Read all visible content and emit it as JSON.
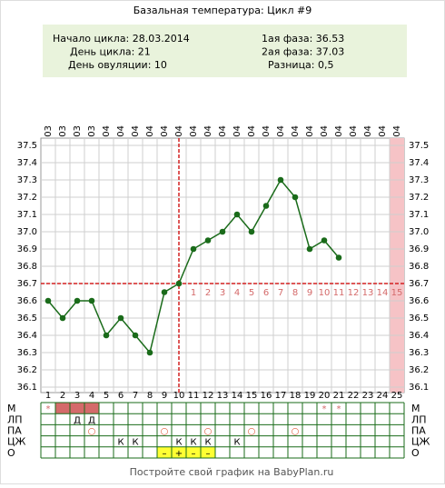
{
  "chart_data": {
    "type": "line",
    "title": "Базальная температура: Цикл #9",
    "info": {
      "left": [
        "Начало цикла: 28.03.2014",
        "День цикла: 21",
        "День овуляции: 10"
      ],
      "right": [
        "1ая фаза: 36.53",
        "2ая фаза: 37.03",
        "Разница: 0,5"
      ]
    },
    "categories": [
      "28.03",
      "29.03",
      "30.03",
      "31.03",
      "01.04",
      "02.04",
      "03.04",
      "04.04",
      "05.04",
      "06.04",
      "07.04",
      "08.04",
      "09.04",
      "10.04",
      "11.04",
      "12.04",
      "13.04",
      "14.04",
      "15.04",
      "16.04",
      "17.04",
      "18.04",
      "19.04",
      "20.04",
      "21.04"
    ],
    "weekdays": [
      "пт",
      "сб",
      "вс",
      "пн",
      "вт",
      "ср",
      "чт",
      "пт",
      "сб",
      "вс",
      "пн",
      "вт",
      "ср",
      "чт",
      "пт",
      "сб",
      "вс",
      "пн",
      "вт",
      "ср",
      "чт",
      "пт",
      "сб",
      "вс",
      "пн"
    ],
    "days": [
      1,
      2,
      3,
      4,
      5,
      6,
      7,
      8,
      9,
      10,
      11,
      12,
      13,
      14,
      15,
      16,
      17,
      18,
      19,
      20,
      21,
      22,
      23,
      24,
      25
    ],
    "series": [
      {
        "name": "Температура",
        "color": "#1a6b1a",
        "values": [
          36.6,
          36.5,
          36.6,
          36.6,
          36.4,
          36.5,
          36.4,
          36.3,
          36.65,
          36.7,
          36.9,
          36.95,
          37.0,
          37.1,
          37.0,
          37.15,
          37.3,
          37.2,
          36.9,
          36.95,
          36.85,
          null,
          null,
          null,
          null
        ]
      }
    ],
    "ylim": [
      36.1,
      37.5
    ],
    "yticks": [
      {
        "value": 36.1,
        "label": "36.1"
      },
      {
        "value": 36.2,
        "label": "36.2"
      },
      {
        "value": 36.3,
        "label": "36.3"
      },
      {
        "value": 36.4,
        "label": "36.4"
      },
      {
        "value": 36.5,
        "label": "36.5"
      },
      {
        "value": 36.6,
        "label": "36.6"
      },
      {
        "value": 36.7,
        "label": "36.7"
      },
      {
        "value": 36.8,
        "label": "36.8"
      },
      {
        "value": 36.9,
        "label": "36.9"
      },
      {
        "value": 37.0,
        "label": "37.0"
      },
      {
        "value": 37.1,
        "label": "37.1"
      },
      {
        "value": 37.2,
        "label": "37.2"
      },
      {
        "value": 37.3,
        "label": "37.3"
      },
      {
        "value": 37.4,
        "label": "37.4"
      },
      {
        "value": 37.5,
        "label": "37.5"
      }
    ],
    "grid": true,
    "coverline": 36.7,
    "ovulation_day": 10,
    "post_ovulation_days": [
      1,
      2,
      3,
      4,
      5,
      6,
      7,
      8,
      9,
      10,
      11,
      12,
      13,
      14,
      15
    ],
    "highlight_day": 25,
    "rows": [
      {
        "label": "М",
        "cells": [
          "*",
          null,
          null,
          null,
          null,
          null,
          null,
          null,
          null,
          null,
          null,
          null,
          null,
          null,
          null,
          null,
          null,
          null,
          null,
          "*",
          "*",
          null,
          null,
          null,
          null
        ],
        "filled_days": [
          2,
          3,
          4
        ],
        "fill": "#d46a6a",
        "text_color": "#d46a6a"
      },
      {
        "label": "ЛП",
        "cells": [
          null,
          null,
          "Д",
          "Д",
          null,
          null,
          null,
          null,
          null,
          null,
          null,
          null,
          null,
          null,
          null,
          null,
          null,
          null,
          null,
          null,
          null,
          null,
          null,
          null,
          null
        ],
        "filled_days": [],
        "fill": "#d46a6a",
        "text_color": "#000000"
      },
      {
        "label": "ПА",
        "cells": [
          null,
          null,
          null,
          "○",
          null,
          null,
          null,
          null,
          "○",
          null,
          null,
          "○",
          null,
          null,
          "○",
          null,
          null,
          "○",
          null,
          null,
          null,
          null,
          null,
          null,
          null
        ],
        "filled_days": [],
        "fill": "#d46a6a",
        "text_color": "#e05a3a"
      },
      {
        "label": "ЦЖ",
        "cells": [
          null,
          null,
          null,
          null,
          null,
          "К",
          "К",
          null,
          null,
          "К",
          "К",
          "К",
          null,
          "К",
          null,
          null,
          null,
          null,
          null,
          null,
          null,
          null,
          null,
          null,
          null
        ],
        "filled_days": [],
        "fill": "#d46a6a",
        "text_color": "#000000"
      },
      {
        "label": "О",
        "cells": [
          null,
          null,
          null,
          null,
          null,
          null,
          null,
          null,
          "–",
          "+",
          "–",
          "–",
          null,
          null,
          null,
          null,
          null,
          null,
          null,
          null,
          null,
          null,
          null,
          null,
          null
        ],
        "filled_days": [
          9,
          10,
          11,
          12
        ],
        "fill": "#ffff33",
        "text_color": "#000000"
      }
    ],
    "footer": "Постройте свой график на BabyPlan.ru"
  }
}
